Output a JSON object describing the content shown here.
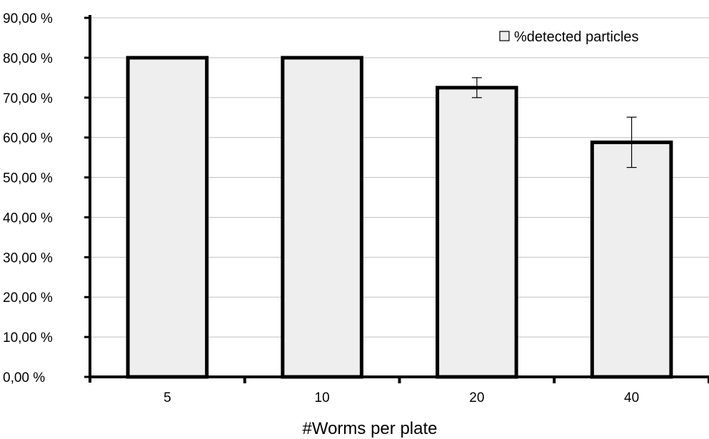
{
  "chart_data": {
    "type": "bar",
    "title": "",
    "xlabel": "#Worms per plate",
    "ylabel": "",
    "categories": [
      "5",
      "10",
      "20",
      "40"
    ],
    "series": [
      {
        "name": "%detected particles",
        "values": [
          80.0,
          80.0,
          72.5,
          58.8
        ],
        "error": [
          0,
          0,
          2.5,
          6.3
        ]
      }
    ],
    "ylim": [
      0,
      90
    ],
    "y_ticks": [
      "0,00 %",
      "10,00 %",
      "20,00 %",
      "30,00 %",
      "40,00 %",
      "50,00 %",
      "60,00 %",
      "70,00 %",
      "80,00 %",
      "90,00 %"
    ],
    "grid": true,
    "legend_position": "top-right",
    "colors": {
      "bar_fill": "#eeeeee",
      "bar_stroke": "#000000",
      "grid": "#c0c0c0"
    }
  }
}
